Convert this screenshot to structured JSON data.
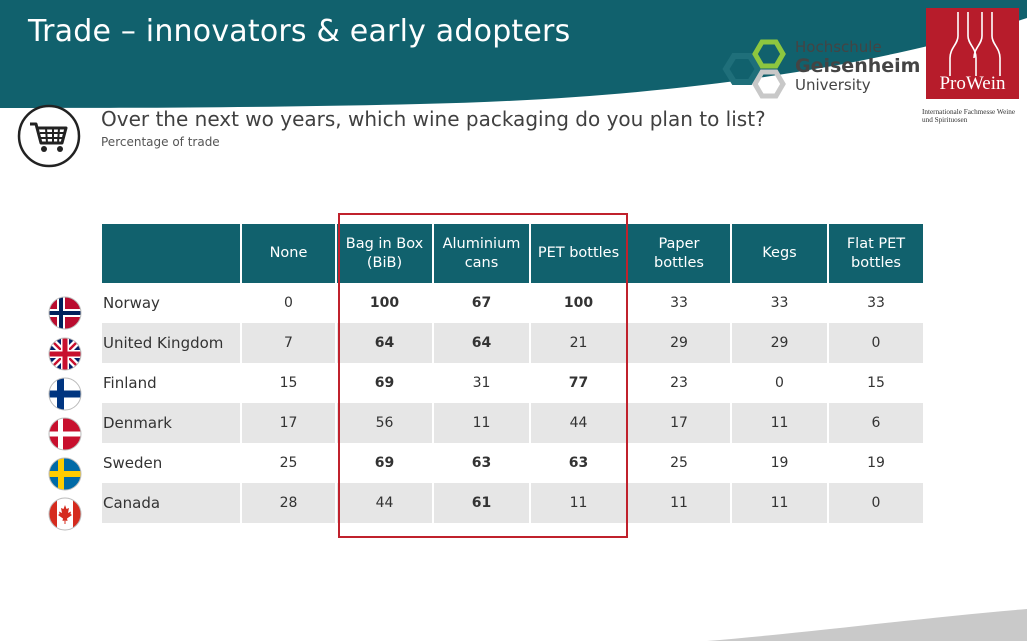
{
  "header": {
    "title": "Trade – innovators & early adopters",
    "band_color": "#11616d"
  },
  "logos": {
    "hochschule": {
      "line1": "Hochschule",
      "line2": "Geisenheim",
      "line3": "University"
    },
    "prowein": {
      "name": "ProWein",
      "subtitle": "Internationale Fachmesse Weine und Spirituosen",
      "color": "#b71c2b"
    }
  },
  "question": {
    "text": "Over the next wo years, which wine packaging do you plan to list?",
    "subtitle": "Percentage of trade",
    "icon": "shopping-cart-icon"
  },
  "table": {
    "headers": [
      "",
      "None",
      "Bag in Box (BiB)",
      "Aluminium cans",
      "PET bottles",
      "Paper bottles",
      "Kegs",
      "Flat PET bottles"
    ],
    "header_color": "#11616d",
    "stripe_color": "#e6e6e6",
    "highlight_color": "#c0212c",
    "highlighted_columns": [
      "Bag in Box (BiB)",
      "Aluminium cans",
      "PET bottles"
    ],
    "rows": [
      {
        "country": "Norway",
        "flag": "norway-flag-icon",
        "values": [
          "0",
          "100",
          "67",
          "100",
          "33",
          "33",
          "33"
        ],
        "bold": [
          false,
          true,
          true,
          true,
          false,
          false,
          false
        ]
      },
      {
        "country": "United Kingdom",
        "flag": "uk-flag-icon",
        "values": [
          "7",
          "64",
          "64",
          "21",
          "29",
          "29",
          "0"
        ],
        "bold": [
          false,
          true,
          true,
          false,
          false,
          false,
          false
        ]
      },
      {
        "country": "Finland",
        "flag": "finland-flag-icon",
        "values": [
          "15",
          "69",
          "31",
          "77",
          "23",
          "0",
          "15"
        ],
        "bold": [
          false,
          true,
          false,
          true,
          false,
          false,
          false
        ]
      },
      {
        "country": "Denmark",
        "flag": "denmark-flag-icon",
        "values": [
          "17",
          "56",
          "11",
          "44",
          "17",
          "11",
          "6"
        ],
        "bold": [
          false,
          false,
          false,
          false,
          false,
          false,
          false
        ]
      },
      {
        "country": "Sweden",
        "flag": "sweden-flag-icon",
        "values": [
          "25",
          "69",
          "63",
          "63",
          "25",
          "19",
          "19"
        ],
        "bold": [
          false,
          true,
          true,
          true,
          false,
          false,
          false
        ]
      },
      {
        "country": "Canada",
        "flag": "canada-flag-icon",
        "values": [
          "28",
          "44",
          "61",
          "11",
          "11",
          "11",
          "0"
        ],
        "bold": [
          false,
          false,
          true,
          false,
          false,
          false,
          false
        ]
      }
    ]
  }
}
